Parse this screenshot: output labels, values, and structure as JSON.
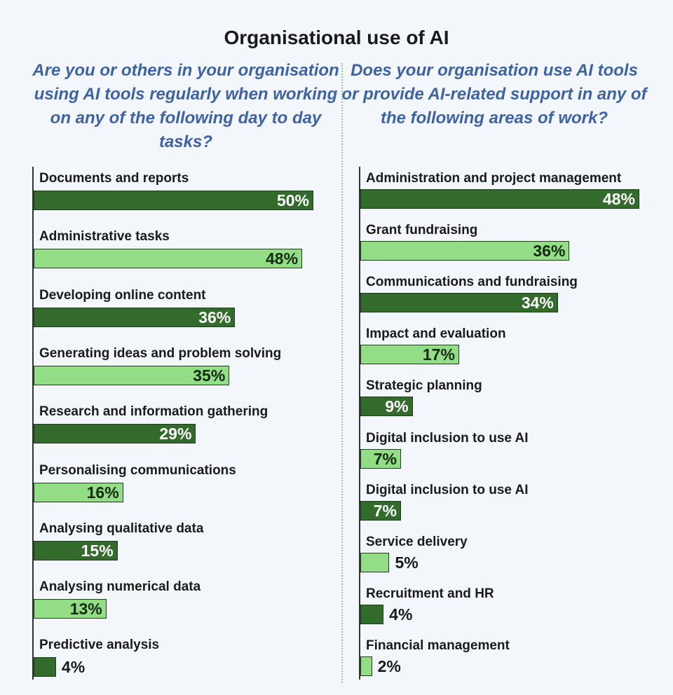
{
  "chart_data": [
    {
      "type": "bar",
      "orientation": "horizontal",
      "title": "Organisational use of AI",
      "subtitle": "Are you or others in your organisation using AI tools regularly when working on any of the following day to day tasks?",
      "categories": [
        "Documents and reports",
        "Administrative tasks",
        "Developing online content",
        "Generating ideas and problem solving",
        "Research and information gathering",
        "Personalising communications",
        "Analysing qualitative data",
        "Analysing numerical data",
        "Predictive analysis"
      ],
      "values": [
        50,
        48,
        36,
        35,
        29,
        16,
        15,
        13,
        4
      ],
      "value_labels": [
        "50%",
        "48%",
        "36%",
        "35%",
        "29%",
        "16%",
        "15%",
        "13%",
        "4%"
      ],
      "unit": "%",
      "colors": [
        "#336b2c",
        "#92dd86"
      ]
    },
    {
      "type": "bar",
      "orientation": "horizontal",
      "subtitle": "Does your organisation use AI tools or provide AI-related support in any of the following areas of work?",
      "categories": [
        "Administration and project management",
        "Grant fundraising",
        "Communications and fundraising",
        "Impact and evaluation",
        "Strategic planning",
        "Digital inclusion to use AI",
        "Digital inclusion to use AI",
        "Service delivery",
        "Recruitment and HR",
        "Financial management"
      ],
      "values": [
        48,
        36,
        34,
        17,
        9,
        7,
        7,
        5,
        4,
        2
      ],
      "value_labels": [
        "48%",
        "36%",
        "34%",
        "17%",
        "9%",
        "7%",
        "7%",
        "5%",
        "4%",
        "2%"
      ],
      "unit": "%",
      "colors": [
        "#336b2c",
        "#92dd86"
      ]
    }
  ],
  "text": {
    "title": "Organisational use of AI",
    "subtitle_left": "Are you or others in your organisation using AI tools regularly when working on any of the following day to day tasks?",
    "subtitle_right": "Does your organisation use AI tools or provide AI-related support in any of the following areas of work?"
  }
}
